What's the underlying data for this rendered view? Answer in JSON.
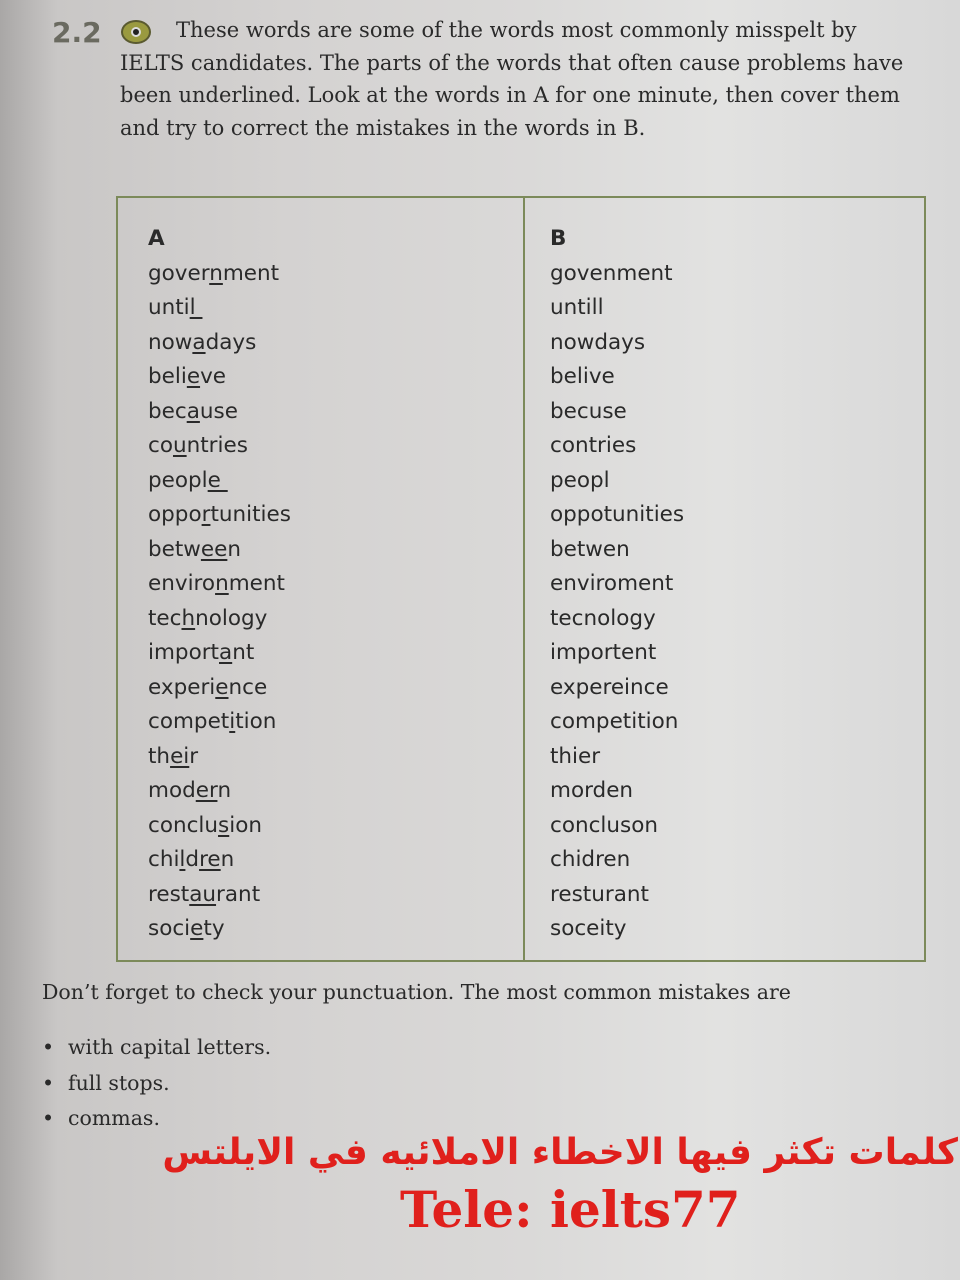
{
  "exercise": {
    "number": "2.2",
    "icon": "cd-audio-icon",
    "instructions": "These words are some of the words most commonly misspelt by IELTS candidates. The parts of the words that often cause problems have been underlined. Look at the words in A for one minute, then cover them and try to correct the mistakes in the words in B."
  },
  "table": {
    "headers": [
      "A",
      "B"
    ],
    "column_a": [
      [
        [
          "gover",
          0
        ],
        [
          "n",
          1
        ],
        [
          "ment",
          0
        ]
      ],
      [
        [
          "unti",
          0
        ],
        [
          "l ",
          1
        ]
      ],
      [
        [
          "now",
          0
        ],
        [
          "a",
          1
        ],
        [
          "days",
          0
        ]
      ],
      [
        [
          "beli",
          0
        ],
        [
          "e",
          1
        ],
        [
          "ve",
          0
        ]
      ],
      [
        [
          "bec",
          0
        ],
        [
          "a",
          1
        ],
        [
          "use",
          0
        ]
      ],
      [
        [
          "co",
          0
        ],
        [
          "u",
          1
        ],
        [
          "ntries",
          0
        ]
      ],
      [
        [
          "peopl",
          0
        ],
        [
          "e ",
          1
        ]
      ],
      [
        [
          "oppo",
          0
        ],
        [
          "r",
          1
        ],
        [
          "tunities",
          0
        ]
      ],
      [
        [
          "betw",
          0
        ],
        [
          "ee",
          1
        ],
        [
          "n",
          0
        ]
      ],
      [
        [
          "enviro",
          0
        ],
        [
          "n",
          1
        ],
        [
          "ment",
          0
        ]
      ],
      [
        [
          "tec",
          0
        ],
        [
          "h",
          1
        ],
        [
          "nology",
          0
        ]
      ],
      [
        [
          "import",
          0
        ],
        [
          "a",
          1
        ],
        [
          "nt",
          0
        ]
      ],
      [
        [
          "experi",
          0
        ],
        [
          "e",
          1
        ],
        [
          "nce",
          0
        ]
      ],
      [
        [
          "compet",
          0
        ],
        [
          "i",
          1
        ],
        [
          "tion",
          0
        ]
      ],
      [
        [
          "th",
          0
        ],
        [
          "ei",
          1
        ],
        [
          "r",
          0
        ]
      ],
      [
        [
          "mod",
          0
        ],
        [
          "er",
          1
        ],
        [
          "n",
          0
        ]
      ],
      [
        [
          "conclu",
          0
        ],
        [
          "s",
          1
        ],
        [
          "ion",
          0
        ]
      ],
      [
        [
          "chi",
          0
        ],
        [
          "l",
          1
        ],
        [
          "d",
          0
        ],
        [
          "re",
          1
        ],
        [
          "n",
          0
        ]
      ],
      [
        [
          "rest",
          0
        ],
        [
          "au",
          1
        ],
        [
          "rant",
          0
        ]
      ],
      [
        [
          "soci",
          0
        ],
        [
          "e",
          1
        ],
        [
          "ty",
          0
        ]
      ]
    ],
    "column_b": [
      "govenment",
      "untill",
      "nowdays",
      "belive",
      "becuse",
      "contries",
      "peopl",
      "oppotunities",
      "betwen",
      "enviroment",
      "tecnology",
      "importent",
      "expereince",
      "competition",
      "thier",
      "morden",
      "concluson",
      "chidren",
      "resturant",
      "soceity"
    ]
  },
  "footer": "Don’t forget to check your punctuation. The most common mistakes are",
  "bullets": [
    "with capital letters.",
    "full stops.",
    "commas."
  ],
  "watermark": {
    "arabic": "كلمات تكثر فيها الاخطاء الاملائيه في الايلتس",
    "contact": "Tele: ielts77",
    "color": "#e0201c"
  }
}
